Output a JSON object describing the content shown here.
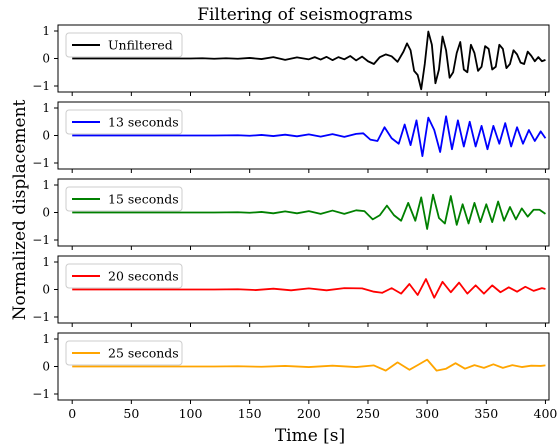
{
  "chart_data": {
    "type": "line",
    "title": "Filtering of seismograms",
    "xlabel": "Time [s]",
    "ylabel": "Normalized displacement",
    "xlim": [
      -12,
      403
    ],
    "xticks": [
      0,
      50,
      100,
      150,
      200,
      250,
      300,
      350,
      400
    ],
    "xtick_labels": [
      "0",
      "50",
      "100",
      "150",
      "200",
      "250",
      "300",
      "350",
      "400"
    ],
    "ylim": [
      -1,
      1
    ],
    "yticks": [
      -1,
      0,
      1
    ],
    "ytick_labels": [
      "−1",
      "0",
      "1"
    ],
    "legend_position": "top-left",
    "grid": false,
    "panels": [
      {
        "name": "Unfiltered",
        "color": "#000000",
        "x": [
          0,
          20,
          40,
          60,
          80,
          100,
          110,
          120,
          130,
          140,
          150,
          160,
          170,
          180,
          190,
          200,
          205,
          210,
          215,
          220,
          225,
          230,
          235,
          240,
          245,
          250,
          255,
          260,
          265,
          270,
          275,
          280,
          283,
          286,
          289,
          292,
          295,
          298,
          301,
          304,
          307,
          310,
          313,
          316,
          319,
          322,
          325,
          328,
          331,
          334,
          337,
          340,
          343,
          346,
          349,
          352,
          355,
          358,
          361,
          364,
          367,
          370,
          373,
          376,
          379,
          382,
          385,
          388,
          391,
          394,
          397,
          400
        ],
        "y": [
          0,
          0,
          0,
          0,
          0,
          0,
          0.01,
          -0.01,
          0.01,
          -0.01,
          0.02,
          -0.02,
          0.05,
          -0.05,
          0.04,
          -0.03,
          0.05,
          -0.04,
          0.06,
          -0.06,
          0.05,
          -0.03,
          0.09,
          -0.07,
          0.07,
          -0.1,
          -0.2,
          0.05,
          0.15,
          0.08,
          -0.12,
          0.25,
          0.55,
          0.3,
          -0.45,
          -0.6,
          -1.12,
          -0.2,
          0.98,
          0.5,
          -0.9,
          -0.4,
          0.8,
          0.3,
          -0.7,
          -0.5,
          0.2,
          0.6,
          -0.4,
          -0.5,
          0.5,
          0.2,
          -0.45,
          -0.3,
          0.45,
          0.35,
          -0.4,
          -0.3,
          0.5,
          0.35,
          -0.35,
          -0.2,
          0.3,
          0.15,
          -0.15,
          -0.2,
          0.25,
          0.1,
          -0.1,
          0.05,
          -0.1,
          -0.05
        ]
      },
      {
        "name": "13 seconds",
        "color": "#0000ff",
        "x": [
          0,
          20,
          40,
          60,
          80,
          100,
          120,
          140,
          150,
          160,
          170,
          180,
          190,
          200,
          210,
          220,
          230,
          240,
          246,
          252,
          258,
          264,
          270,
          276,
          281,
          286,
          291,
          296,
          301,
          306,
          311,
          316,
          321,
          326,
          331,
          336,
          341,
          346,
          351,
          356,
          361,
          366,
          371,
          376,
          381,
          386,
          391,
          396,
          400
        ],
        "y": [
          0,
          0,
          0,
          0,
          0,
          0,
          0,
          0.01,
          -0.01,
          0.02,
          -0.02,
          0.03,
          -0.03,
          0.04,
          -0.04,
          0.05,
          -0.05,
          0.06,
          0.08,
          -0.15,
          -0.2,
          0.3,
          -0.1,
          -0.3,
          0.4,
          -0.35,
          0.55,
          -0.75,
          0.65,
          0.2,
          -0.6,
          0.7,
          -0.5,
          0.55,
          -0.4,
          0.5,
          -0.4,
          0.35,
          -0.5,
          0.35,
          -0.3,
          0.45,
          -0.4,
          0.3,
          -0.3,
          0.2,
          -0.2,
          0.15,
          -0.1
        ]
      },
      {
        "name": "15 seconds",
        "color": "#008000",
        "x": [
          0,
          20,
          40,
          60,
          80,
          100,
          120,
          140,
          150,
          160,
          170,
          180,
          190,
          200,
          210,
          220,
          230,
          240,
          247,
          254,
          260,
          266,
          272,
          278,
          284,
          290,
          295,
          300,
          305,
          310,
          315,
          320,
          325,
          330,
          335,
          340,
          345,
          350,
          355,
          360,
          365,
          370,
          375,
          380,
          385,
          390,
          395,
          400
        ],
        "y": [
          0,
          0,
          0,
          0,
          0,
          0,
          0,
          0.01,
          -0.01,
          0.02,
          -0.03,
          0.04,
          -0.03,
          0.05,
          -0.05,
          0.07,
          -0.05,
          0.08,
          0.05,
          -0.25,
          -0.1,
          0.25,
          -0.1,
          -0.3,
          0.35,
          -0.3,
          0.55,
          -0.6,
          0.65,
          -0.2,
          -0.4,
          0.6,
          -0.45,
          0.3,
          -0.4,
          0.35,
          -0.35,
          0.3,
          -0.35,
          0.4,
          -0.3,
          0.2,
          -0.25,
          0.15,
          -0.15,
          0.1,
          0.1,
          -0.05
        ]
      },
      {
        "name": "20 seconds",
        "color": "#ff0000",
        "x": [
          0,
          20,
          40,
          60,
          80,
          100,
          120,
          140,
          155,
          170,
          185,
          200,
          215,
          230,
          245,
          255,
          262,
          270,
          278,
          285,
          292,
          299,
          306,
          313,
          320,
          327,
          334,
          341,
          348,
          355,
          362,
          369,
          376,
          383,
          390,
          397,
          400
        ],
        "y": [
          0,
          0,
          0,
          0,
          0,
          0,
          0,
          0.01,
          -0.02,
          0.03,
          -0.03,
          0.04,
          -0.03,
          0.05,
          0.04,
          -0.08,
          -0.12,
          0.05,
          -0.15,
          0.2,
          -0.2,
          0.38,
          -0.3,
          0.28,
          -0.1,
          0.25,
          -0.15,
          0.15,
          -0.15,
          0.15,
          -0.1,
          0.08,
          -0.08,
          0.1,
          -0.05,
          0.05,
          0.02
        ]
      },
      {
        "name": "25 seconds",
        "color": "#ffa500",
        "x": [
          0,
          20,
          40,
          60,
          80,
          100,
          120,
          140,
          160,
          180,
          200,
          220,
          240,
          255,
          265,
          275,
          285,
          292,
          300,
          308,
          316,
          324,
          332,
          340,
          348,
          356,
          364,
          372,
          380,
          388,
          396,
          400
        ],
        "y": [
          0,
          0,
          0,
          0,
          0,
          0,
          0,
          0.01,
          -0.01,
          0.02,
          -0.02,
          0.03,
          -0.02,
          0.04,
          -0.15,
          0.15,
          -0.12,
          0.05,
          0.25,
          -0.15,
          -0.08,
          0.12,
          -0.08,
          0.05,
          -0.05,
          0.08,
          -0.05,
          0.05,
          -0.02,
          0.03,
          0.02,
          0.04
        ]
      }
    ]
  }
}
